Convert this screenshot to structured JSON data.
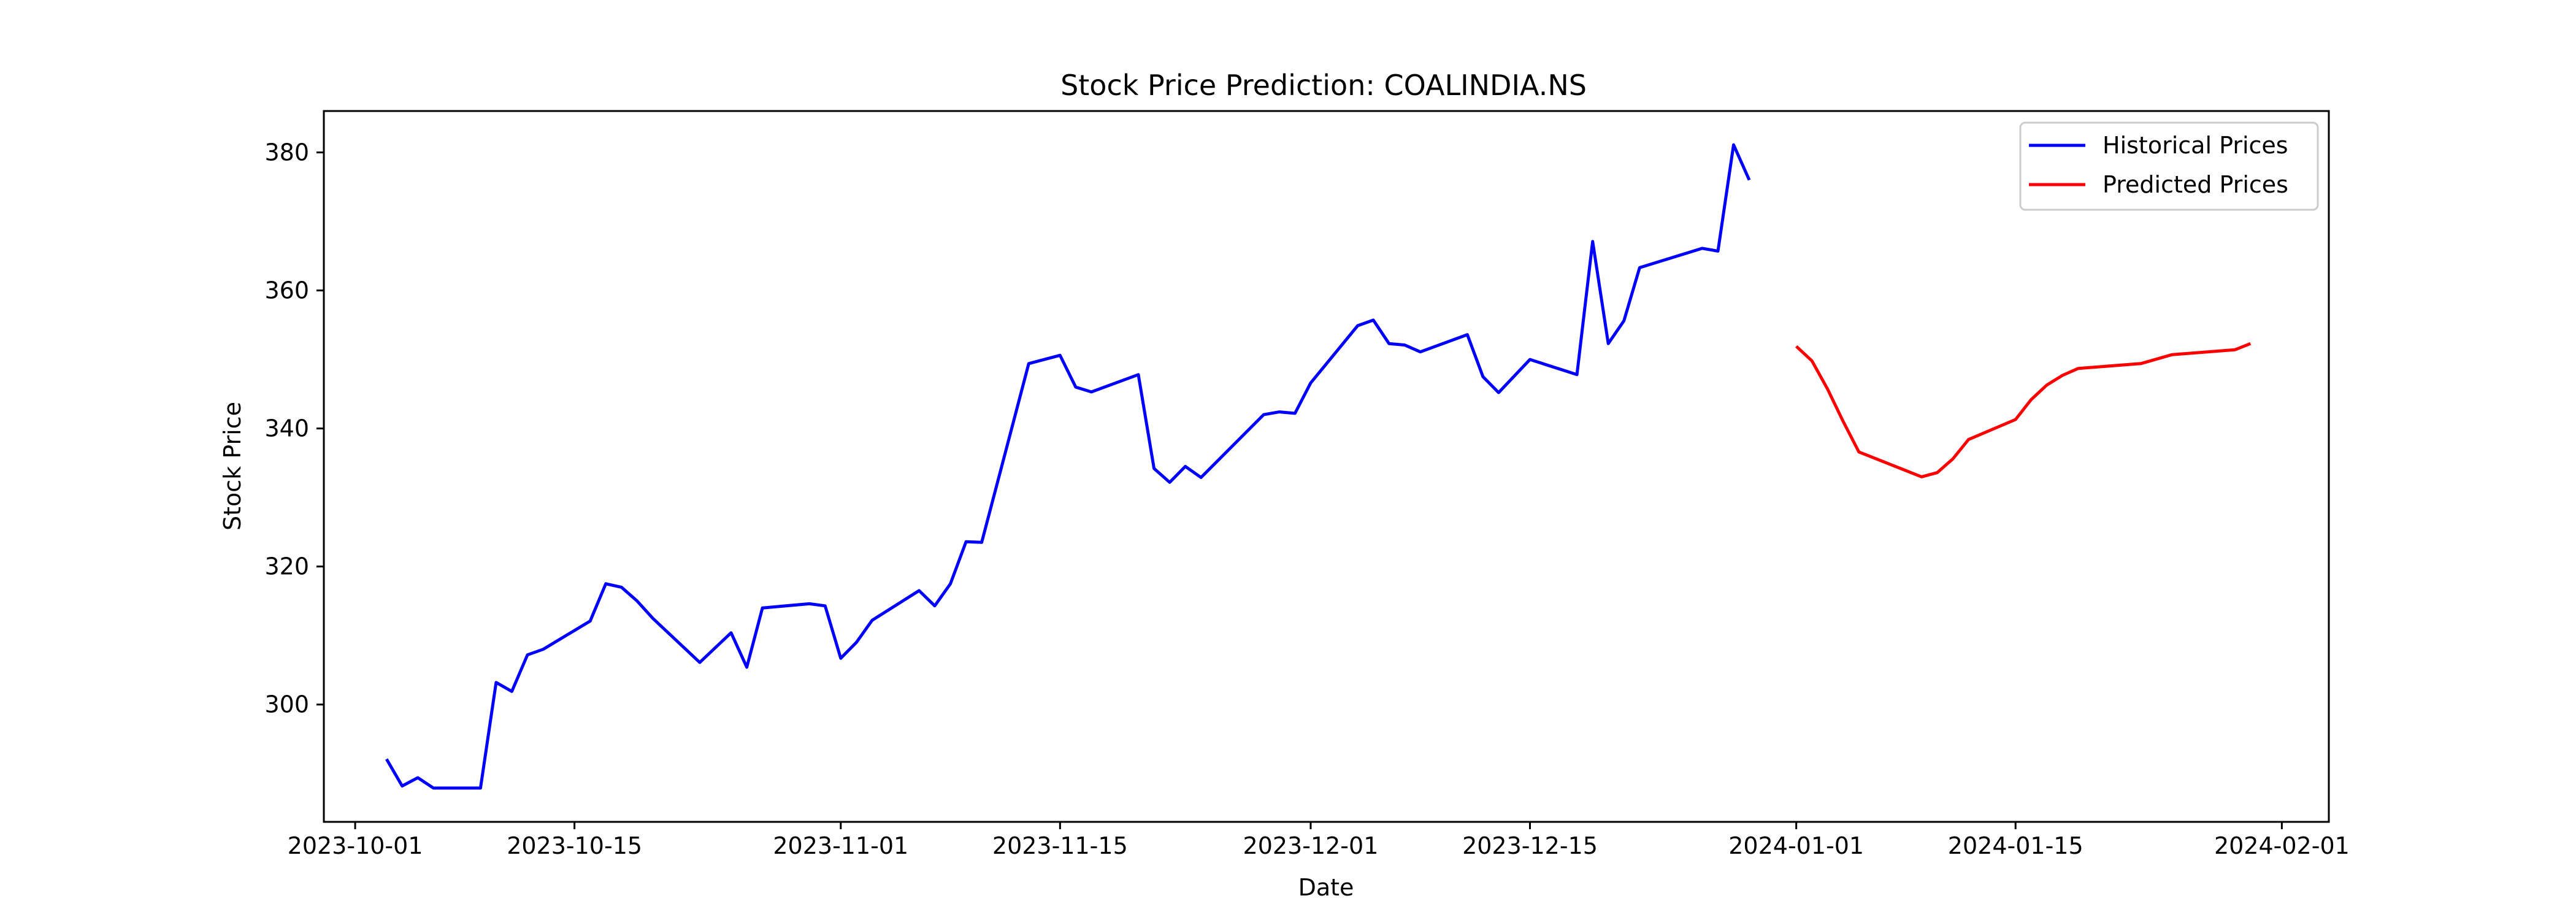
{
  "chart_data": {
    "type": "line",
    "title": "Stock Price Prediction: COALINDIA.NS",
    "xlabel": "Date",
    "ylabel": "Stock Price",
    "xlim": [
      "2023-09-29",
      "2024-02-04"
    ],
    "ylim": [
      283,
      386
    ],
    "x_ticks": [
      "2023-10-01",
      "2023-10-15",
      "2023-11-01",
      "2023-11-15",
      "2023-12-01",
      "2023-12-15",
      "2024-01-01",
      "2024-01-15",
      "2024-02-01"
    ],
    "y_ticks": [
      300,
      320,
      340,
      360,
      380
    ],
    "grid": false,
    "legend_position": "top-right",
    "series": [
      {
        "name": "Historical Prices",
        "color": "#0000ff",
        "points": [
          [
            "2023-10-03",
            292.1
          ],
          [
            "2023-10-04",
            288.2
          ],
          [
            "2023-10-05",
            289.4
          ],
          [
            "2023-10-06",
            287.9
          ],
          [
            "2023-10-09",
            287.9
          ],
          [
            "2023-10-10",
            303.2
          ],
          [
            "2023-10-11",
            301.9
          ],
          [
            "2023-10-12",
            307.2
          ],
          [
            "2023-10-13",
            308.0
          ],
          [
            "2023-10-16",
            312.1
          ],
          [
            "2023-10-17",
            317.5
          ],
          [
            "2023-10-18",
            317.0
          ],
          [
            "2023-10-19",
            315.0
          ],
          [
            "2023-10-20",
            312.5
          ],
          [
            "2023-10-23",
            306.1
          ],
          [
            "2023-10-25",
            310.4
          ],
          [
            "2023-10-26",
            305.4
          ],
          [
            "2023-10-27",
            314.0
          ],
          [
            "2023-10-30",
            314.6
          ],
          [
            "2023-10-31",
            314.3
          ],
          [
            "2023-11-01",
            306.7
          ],
          [
            "2023-11-02",
            309.0
          ],
          [
            "2023-11-03",
            312.2
          ],
          [
            "2023-11-06",
            316.5
          ],
          [
            "2023-11-07",
            314.3
          ],
          [
            "2023-11-08",
            317.5
          ],
          [
            "2023-11-09",
            323.6
          ],
          [
            "2023-11-10",
            323.5
          ],
          [
            "2023-11-13",
            349.4
          ],
          [
            "2023-11-15",
            350.6
          ],
          [
            "2023-11-16",
            346.0
          ],
          [
            "2023-11-17",
            345.3
          ],
          [
            "2023-11-20",
            347.8
          ],
          [
            "2023-11-21",
            334.2
          ],
          [
            "2023-11-22",
            332.2
          ],
          [
            "2023-11-23",
            334.5
          ],
          [
            "2023-11-24",
            332.9
          ],
          [
            "2023-11-28",
            342.0
          ],
          [
            "2023-11-29",
            342.4
          ],
          [
            "2023-11-30",
            342.2
          ],
          [
            "2023-12-01",
            346.6
          ],
          [
            "2023-12-04",
            354.9
          ],
          [
            "2023-12-05",
            355.7
          ],
          [
            "2023-12-06",
            352.3
          ],
          [
            "2023-12-07",
            352.1
          ],
          [
            "2023-12-08",
            351.1
          ],
          [
            "2023-12-11",
            353.6
          ],
          [
            "2023-12-12",
            347.5
          ],
          [
            "2023-12-13",
            345.2
          ],
          [
            "2023-12-15",
            350.0
          ],
          [
            "2023-12-18",
            347.8
          ],
          [
            "2023-12-19",
            367.1
          ],
          [
            "2023-12-20",
            352.3
          ],
          [
            "2023-12-21",
            355.6
          ],
          [
            "2023-12-22",
            363.3
          ],
          [
            "2023-12-26",
            366.1
          ],
          [
            "2023-12-27",
            365.7
          ],
          [
            "2023-12-28",
            381.1
          ],
          [
            "2023-12-29",
            376.0
          ]
        ]
      },
      {
        "name": "Predicted Prices",
        "color": "#ff0000",
        "points": [
          [
            "2024-01-01",
            351.9
          ],
          [
            "2024-01-02",
            349.8
          ],
          [
            "2024-01-03",
            345.7
          ],
          [
            "2024-01-04",
            341.0
          ],
          [
            "2024-01-05",
            336.6
          ],
          [
            "2024-01-09",
            333.0
          ],
          [
            "2024-01-10",
            333.6
          ],
          [
            "2024-01-11",
            335.6
          ],
          [
            "2024-01-12",
            338.4
          ],
          [
            "2024-01-15",
            341.3
          ],
          [
            "2024-01-16",
            344.2
          ],
          [
            "2024-01-17",
            346.3
          ],
          [
            "2024-01-18",
            347.7
          ],
          [
            "2024-01-19",
            348.7
          ],
          [
            "2024-01-23",
            349.4
          ],
          [
            "2024-01-25",
            350.7
          ],
          [
            "2024-01-29",
            351.4
          ],
          [
            "2024-01-30",
            352.3
          ]
        ]
      }
    ]
  }
}
